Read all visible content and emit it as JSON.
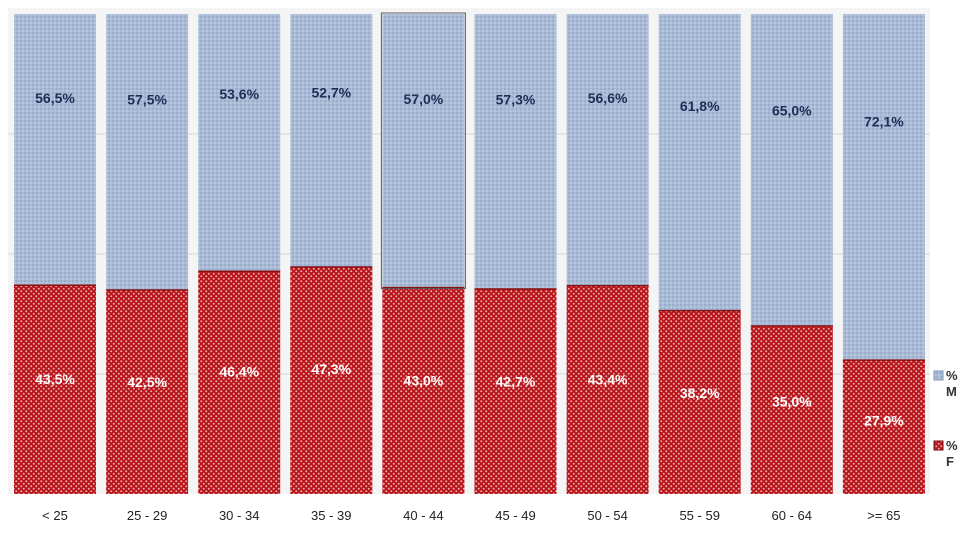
{
  "chart_data": {
    "type": "bar",
    "stacked": true,
    "percent_stacked": true,
    "categories": [
      "< 25",
      "25 - 29",
      "30 - 34",
      "35 - 39",
      "40 - 44",
      "45 - 49",
      "50 - 54",
      "55 - 59",
      "60 - 64",
      ">= 65"
    ],
    "series": [
      {
        "name": "% F",
        "values": [
          43.5,
          42.5,
          46.4,
          47.3,
          43.0,
          42.7,
          43.4,
          38.2,
          35.0,
          27.9
        ],
        "labels": [
          "43,5%",
          "42,5%",
          "46,4%",
          "47,3%",
          "43,0%",
          "42,7%",
          "43,4%",
          "38,2%",
          "35,0%",
          "27,9%"
        ],
        "color": "#c0161a"
      },
      {
        "name": "% M",
        "values": [
          56.5,
          57.5,
          53.6,
          52.7,
          57.0,
          57.3,
          56.6,
          61.8,
          65.0,
          72.1
        ],
        "labels": [
          "56,5%",
          "57,5%",
          "53,6%",
          "52,7%",
          "57,0%",
          "57,3%",
          "56,6%",
          "61,8%",
          "65,0%",
          "72,1%"
        ],
        "color": "#a4b7d4"
      }
    ],
    "ylim": [
      0,
      100
    ],
    "grid": true,
    "legend": "right",
    "legend_items": [
      {
        "line1": "%",
        "line2": "M",
        "series": "% M"
      },
      {
        "line1": "%",
        "line2": "F",
        "series": "% F"
      }
    ],
    "colors": {
      "female": "#c0161a",
      "male": "#a4b7d4",
      "male_label": "#1c2f55",
      "female_label": "#ffffff",
      "plot_bg": "#f4f4f4",
      "grid": "#d6d6d6"
    }
  }
}
